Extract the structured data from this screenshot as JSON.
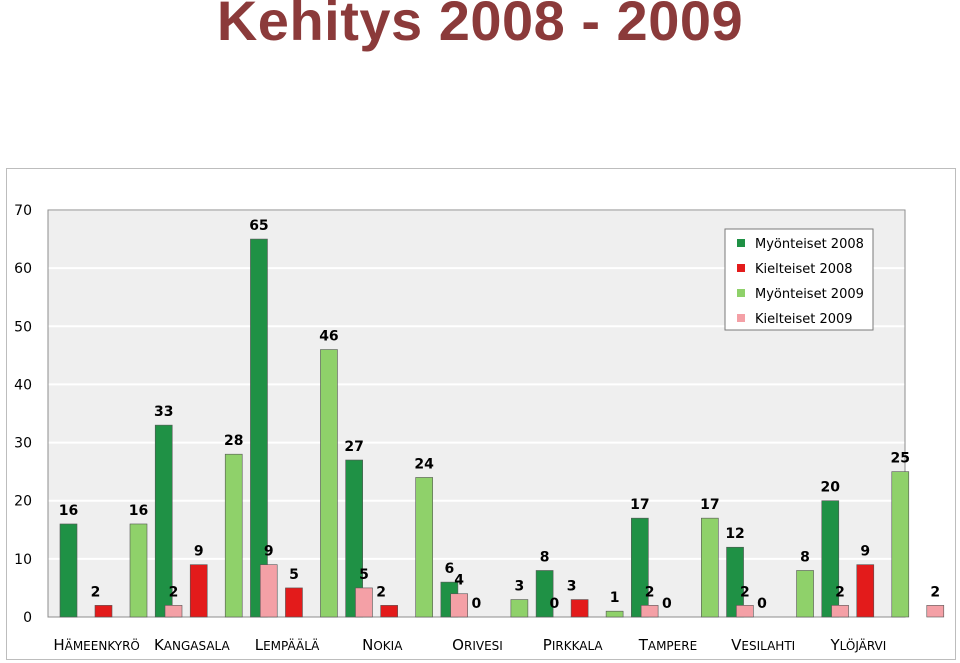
{
  "page": {
    "title": "Kehitys 2008 - 2009"
  },
  "chart_data": {
    "type": "bar",
    "title": "",
    "xlabel": "",
    "ylabel": "",
    "ylim": [
      0,
      70
    ],
    "yticks": [
      0,
      10,
      20,
      30,
      40,
      50,
      60,
      70
    ],
    "grid": true,
    "legend_position": "top-right",
    "categories": [
      "HÄMEENKYRÖ",
      "KANGASALA",
      "LEMPÄÄLÄ",
      "NOKIA",
      "ORIVESI",
      "PIRKKALA",
      "TAMPERE",
      "VESILAHTI",
      "YLÖJÄRVI"
    ],
    "series": [
      {
        "name": "Myönteiset 2008",
        "color": "#1f9145",
        "values": [
          16,
          33,
          65,
          27,
          6,
          8,
          17,
          12,
          20
        ]
      },
      {
        "name": "Kielteiset 2008",
        "color": "#e31b1b",
        "values": [
          2,
          9,
          5,
          2,
          0,
          3,
          0,
          0,
          9
        ]
      },
      {
        "name": "Myönteiset 2009",
        "color": "#8fd16a",
        "values": [
          16,
          28,
          46,
          24,
          3,
          1,
          17,
          8,
          25
        ]
      },
      {
        "name": "Kielteiset 2009",
        "color": "#f4a0a6",
        "values": [
          2,
          9,
          5,
          4,
          0,
          2,
          2,
          2,
          2
        ]
      }
    ],
    "colors": {
      "plot_background": "#efefef",
      "grid": "#ffffff",
      "title": "#8b3a3a"
    }
  }
}
